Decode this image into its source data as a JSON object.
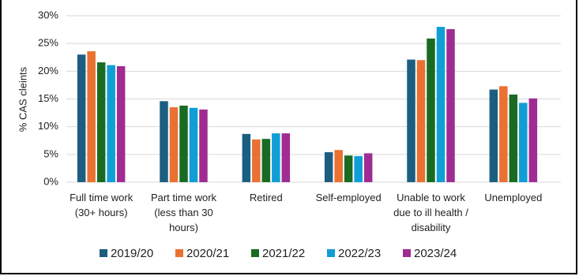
{
  "chart_data": {
    "type": "bar",
    "y_label": "% CAS cleints",
    "categories": [
      "Full time work (30+ hours)",
      "Part time work (less than 30 hours)",
      "Retired",
      "Self-employed",
      "Unable to work due to ill health / disability",
      "Unemployed"
    ],
    "series": [
      {
        "name": "2019/20",
        "color": "#1b5e82",
        "values": [
          23.0,
          14.6,
          8.7,
          5.4,
          22.1,
          16.7
        ]
      },
      {
        "name": "2020/21",
        "color": "#e97132",
        "values": [
          23.6,
          13.5,
          7.7,
          5.8,
          22.0,
          17.3
        ]
      },
      {
        "name": "2021/22",
        "color": "#196b24",
        "values": [
          21.6,
          13.8,
          7.8,
          4.8,
          25.9,
          15.8
        ]
      },
      {
        "name": "2022/23",
        "color": "#0f9ed5",
        "values": [
          21.1,
          13.4,
          8.8,
          4.7,
          28.0,
          14.3
        ]
      },
      {
        "name": "2023/24",
        "color": "#a02b93",
        "values": [
          20.9,
          13.1,
          8.8,
          5.2,
          27.6,
          15.1
        ]
      }
    ],
    "ylim": [
      0,
      30
    ],
    "yticks": [
      {
        "value": 0,
        "label": "0%"
      },
      {
        "value": 5,
        "label": "5%"
      },
      {
        "value": 10,
        "label": "10%"
      },
      {
        "value": 15,
        "label": "15%"
      },
      {
        "value": 20,
        "label": "20%"
      },
      {
        "value": 25,
        "label": "25%"
      },
      {
        "value": 30,
        "label": "30%"
      }
    ],
    "grid": true
  }
}
